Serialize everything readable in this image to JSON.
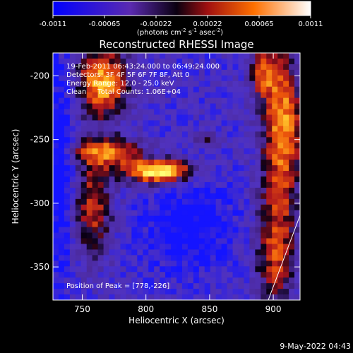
{
  "colorbar": {
    "ticks": [
      "-0.0011",
      "-0.00065",
      "-0.00022",
      "0.00022",
      "0.00065",
      "0.0011"
    ],
    "unit_main": "(photons cm",
    "unit_sup1": "-2",
    "unit_mid": " s",
    "unit_sup2": "-1",
    "unit_end": " asec",
    "unit_sup3": "-2",
    "unit_close": ")"
  },
  "chart_data": {
    "type": "heatmap",
    "title": "Reconstructed RHESSI Image",
    "xlabel": "Heliocentric X (arcsec)",
    "ylabel": "Heliocentric Y (arcsec)",
    "xlim": [
      727,
      921
    ],
    "ylim": [
      -376,
      -182
    ],
    "x_ticks": [
      "750",
      "800",
      "850",
      "900"
    ],
    "y_ticks": [
      "-200",
      "-250",
      "-300",
      "-350"
    ],
    "x_tick_values": [
      750,
      800,
      850,
      900
    ],
    "y_tick_values": [
      -200,
      -250,
      -300,
      -350
    ],
    "clim": [
      -0.0011,
      0.0011
    ],
    "peak": [
      778,
      -226
    ],
    "annotations": [
      "19-Feb-2011 06:43:24.000 to 06:49:24.000",
      "Detectors: 3F 4F 5F 6F 7F 8F, Att 0",
      "Energy Range: 12.0 - 25.0 keV",
      "Clean     Total Counts: 1.06E+04"
    ],
    "peak_label": "Position of Peak = [778,-226]"
  },
  "footer": {
    "date": "9-May-2022 04:43"
  },
  "colors": {
    "background": "#000000",
    "text": "#ffffff",
    "low": "#1a1aff",
    "mid_low": "#5a3aa0",
    "mid_high": "#d83a10",
    "high": "#ffff60"
  }
}
